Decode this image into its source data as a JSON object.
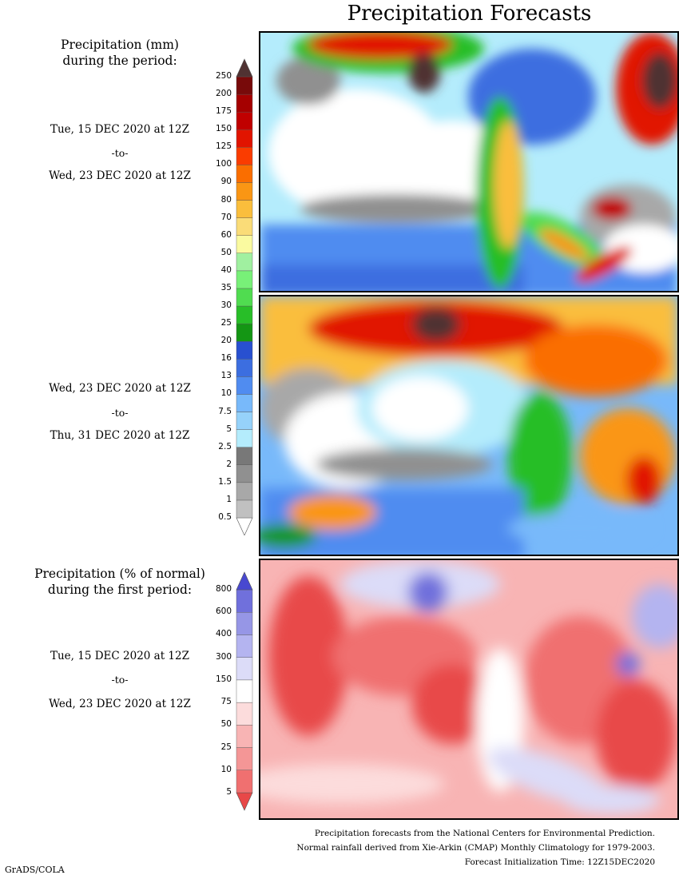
{
  "title": "Precipitation Forecasts",
  "left_panel": {
    "mm_header_line1": "Precipitation (mm)",
    "mm_header_line2": "during the period:",
    "period1": {
      "start": "Tue, 15 DEC 2020 at 12Z",
      "to": "-to-",
      "end": "Wed, 23 DEC 2020 at 12Z"
    },
    "period2": {
      "start": "Wed, 23 DEC 2020 at 12Z",
      "to": "-to-",
      "end": "Thu, 31 DEC 2020 at 12Z"
    },
    "pct_header_line1": "Precipitation (% of normal)",
    "pct_header_line2": "during the first period:",
    "period3": {
      "start": "Tue, 15 DEC 2020 at 12Z",
      "to": "-to-",
      "end": "Wed, 23 DEC 2020 at 12Z"
    }
  },
  "mm_colorbar": {
    "levels": [
      "0.5",
      "1",
      "1.5",
      "2",
      "2.5",
      "5",
      "7.5",
      "10",
      "13",
      "16",
      "20",
      "25",
      "30",
      "35",
      "40",
      "50",
      "60",
      "70",
      "80",
      "90",
      "100",
      "125",
      "150",
      "175",
      "200",
      "250"
    ],
    "colors": [
      "#ffffff",
      "#c0c0c0",
      "#a8a8a8",
      "#909090",
      "#787878",
      "#b4ecfc",
      "#96d2fa",
      "#78b9fa",
      "#508cf0",
      "#3c6ee0",
      "#2850d0",
      "#149614",
      "#28be28",
      "#50dc50",
      "#78f078",
      "#a0f0a0",
      "#fafaa0",
      "#fadc78",
      "#fabe3c",
      "#fa9614",
      "#fa6e00",
      "#fa3c00",
      "#e11400",
      "#c00000",
      "#a50000",
      "#780a0a",
      "#503232"
    ]
  },
  "pct_colorbar": {
    "levels": [
      "5",
      "10",
      "25",
      "50",
      "75",
      "150",
      "300",
      "400",
      "600",
      "800"
    ],
    "colors": [
      "#e84848",
      "#f07070",
      "#f49696",
      "#f8b4b4",
      "#fcdcdc",
      "#ffffff",
      "#dcdcf8",
      "#b4b4f0",
      "#9696e6",
      "#7070dc",
      "#4848d0"
    ]
  },
  "footer": {
    "line1": "Precipitation forecasts from the National Centers for Environmental Prediction.",
    "line2": "Normal rainfall derived from Xie-Arkin (CMAP) Monthly Climatology for 1979-2003.",
    "line3": "Forecast Initialization Time: 12Z15DEC2020"
  },
  "credit": "GrADS/COLA"
}
